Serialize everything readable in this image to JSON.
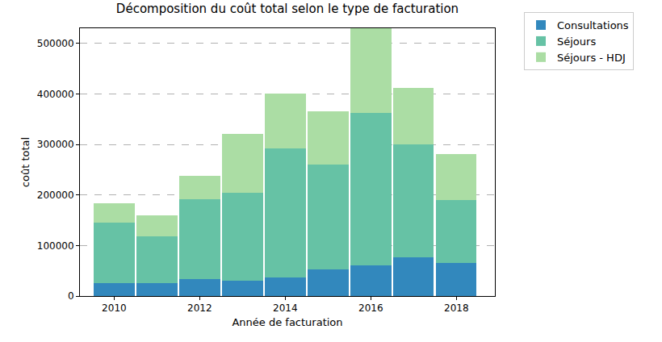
{
  "chart_data": {
    "type": "bar",
    "title": "Décomposition du coût total selon le type de facturation",
    "x_label": "Année de facturation",
    "y_label": "coût total",
    "x": [
      2010,
      2011,
      2012,
      2013,
      2014,
      2015,
      2016,
      2017,
      2018
    ],
    "series": [
      {
        "name": "Consultations",
        "color": "#3288bd",
        "values": [
          25000,
          25000,
          33000,
          31000,
          36000,
          52000,
          61000,
          76000,
          66000
        ]
      },
      {
        "name": "Séjours",
        "color": "#66c2a5",
        "values": [
          120000,
          93000,
          159000,
          174000,
          256000,
          208000,
          301000,
          224000,
          124000
        ]
      },
      {
        "name": "Séjours - HDJ",
        "color": "#abdda4",
        "values": [
          39000,
          42000,
          46000,
          116000,
          109000,
          106000,
          168000,
          112000,
          91000
        ]
      }
    ],
    "xlim": [
      2009.2,
      2018.9
    ],
    "xticks": [
      2010,
      2012,
      2014,
      2016,
      2018
    ],
    "ylim": [
      0,
      530000
    ],
    "yticks": [
      0,
      100000,
      200000,
      300000,
      400000,
      500000
    ],
    "stacked": true,
    "grid": true,
    "legend": "right"
  }
}
